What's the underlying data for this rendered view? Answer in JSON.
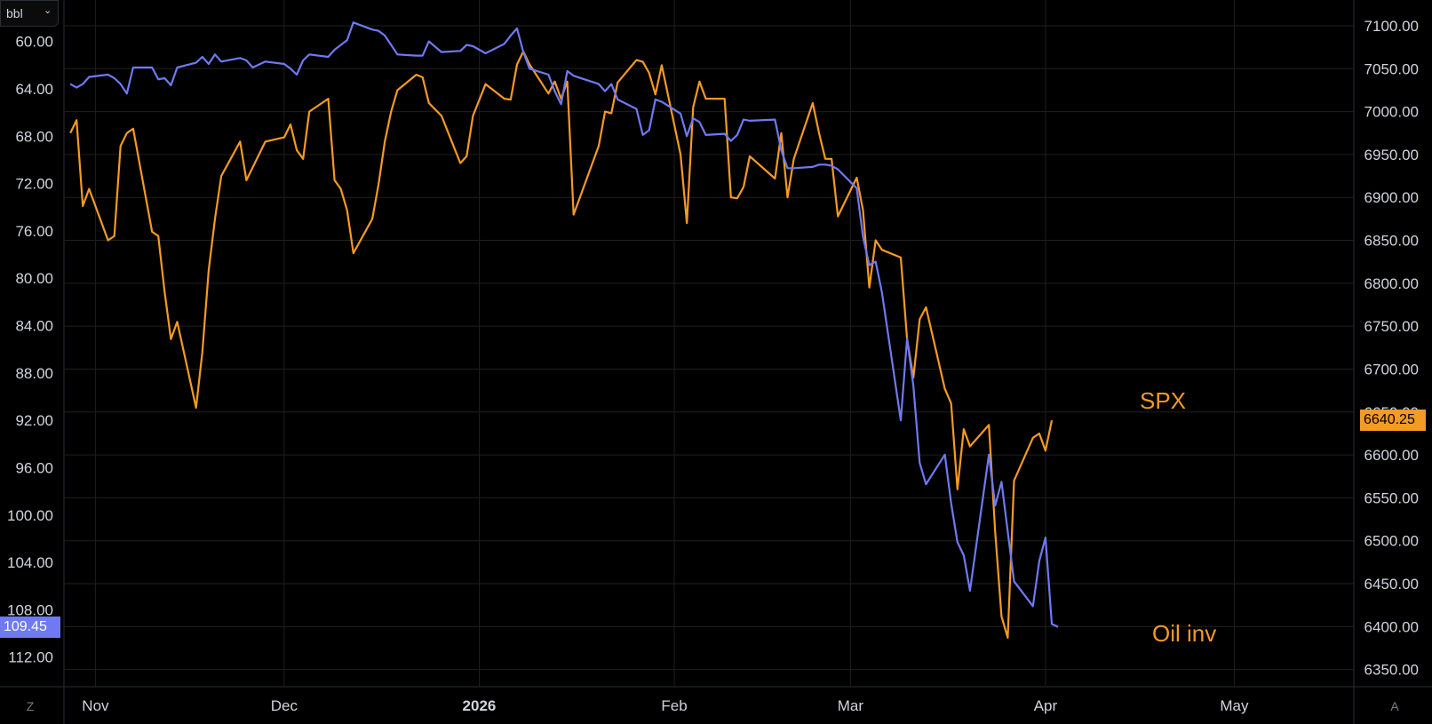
{
  "toolbar": {
    "unit_label": "bbl",
    "unit_chevron": "chevron-down-icon"
  },
  "corner": {
    "left_button": "Z",
    "right_button": "A"
  },
  "colors": {
    "background": "#000000",
    "grid": "#1f1f1f",
    "oil": "#6f79f2",
    "spx": "#f59a23",
    "text": "#d1d4dc"
  },
  "labels": {
    "spx": "SPX",
    "oil": "Oil inv"
  },
  "tags": {
    "oil_last": "109.45",
    "spx_last": "6640.25"
  },
  "chart_data": {
    "type": "line",
    "x_ticks": [
      "Nov",
      "Dec",
      "2026",
      "Feb",
      "Mar",
      "Apr",
      "May"
    ],
    "left_axis": {
      "ticks": [
        "60.00",
        "64.00",
        "68.00",
        "72.00",
        "76.00",
        "80.00",
        "84.00",
        "88.00",
        "92.00",
        "96.00",
        "100.00",
        "104.00",
        "108.00",
        "112.00"
      ],
      "range": [
        56.5,
        114.5
      ],
      "inverted": true
    },
    "right_axis": {
      "ticks": [
        "7100.00",
        "7050.00",
        "7000.00",
        "6950.00",
        "6900.00",
        "6850.00",
        "6800.00",
        "6750.00",
        "6700.00",
        "6650.00",
        "6600.00",
        "6550.00",
        "6500.00",
        "6450.00",
        "6400.00",
        "6350.00"
      ],
      "range": [
        6330,
        7130
      ]
    },
    "series": [
      {
        "name": "SPX",
        "axis": "right",
        "color": "#f59a23",
        "last": 6640.25,
        "points": [
          [
            "Oct 28",
            6975
          ],
          [
            "Oct 29",
            6990
          ],
          [
            "Oct 30",
            6890
          ],
          [
            "Oct 31",
            6910
          ],
          [
            "Nov 3",
            6850
          ],
          [
            "Nov 4",
            6855
          ],
          [
            "Nov 5",
            6960
          ],
          [
            "Nov 6",
            6975
          ],
          [
            "Nov 7",
            6980
          ],
          [
            "Nov 10",
            6860
          ],
          [
            "Nov 11",
            6855
          ],
          [
            "Nov 12",
            6790
          ],
          [
            "Nov 13",
            6735
          ],
          [
            "Nov 14",
            6755
          ],
          [
            "Nov 17",
            6655
          ],
          [
            "Nov 18",
            6720
          ],
          [
            "Nov 19",
            6815
          ],
          [
            "Nov 20",
            6875
          ],
          [
            "Nov 21",
            6925
          ],
          [
            "Nov 24",
            6965
          ],
          [
            "Nov 25",
            6920
          ],
          [
            "Nov 26",
            6935
          ],
          [
            "Nov 28",
            6965
          ],
          [
            "Dec 1",
            6970
          ],
          [
            "Dec 2",
            6985
          ],
          [
            "Dec 3",
            6955
          ],
          [
            "Dec 4",
            6945
          ],
          [
            "Dec 5",
            7000
          ],
          [
            "Dec 8",
            7015
          ],
          [
            "Dec 9",
            6920
          ],
          [
            "Dec 10",
            6910
          ],
          [
            "Dec 11",
            6885
          ],
          [
            "Dec 12",
            6835
          ],
          [
            "Dec 15",
            6875
          ],
          [
            "Dec 16",
            6915
          ],
          [
            "Dec 17",
            6965
          ],
          [
            "Dec 18",
            7000
          ],
          [
            "Dec 19",
            7025
          ],
          [
            "Dec 22",
            7043
          ],
          [
            "Dec 23",
            7040
          ],
          [
            "Dec 24",
            7010
          ],
          [
            "Dec 26",
            6995
          ],
          [
            "Dec 29",
            6940
          ],
          [
            "Dec 30",
            6948
          ],
          [
            "Dec 31",
            6995
          ],
          [
            "Jan 2",
            7032
          ],
          [
            "Jan 5",
            7015
          ],
          [
            "Jan 6",
            7014
          ],
          [
            "Jan 7",
            7055
          ],
          [
            "Jan 8",
            7070
          ],
          [
            "Jan 9",
            7055
          ],
          [
            "Jan 12",
            7021
          ],
          [
            "Jan 13",
            7035
          ],
          [
            "Jan 14",
            7015
          ],
          [
            "Jan 15",
            7035
          ],
          [
            "Jan 16",
            6880
          ],
          [
            "Jan 20",
            6960
          ],
          [
            "Jan 21",
            7000
          ],
          [
            "Jan 22",
            6998
          ],
          [
            "Jan 23",
            7034
          ],
          [
            "Jan 26",
            7060
          ],
          [
            "Jan 27",
            7058
          ],
          [
            "Jan 28",
            7045
          ],
          [
            "Jan 29",
            7020
          ],
          [
            "Jan 30",
            7054
          ],
          [
            "Feb 2",
            6950
          ],
          [
            "Feb 3",
            6870
          ],
          [
            "Feb 4",
            7005
          ],
          [
            "Feb 5",
            7035
          ],
          [
            "Feb 6",
            7015
          ],
          [
            "Feb 9",
            7015
          ],
          [
            "Feb 10",
            6900
          ],
          [
            "Feb 11",
            6899
          ],
          [
            "Feb 12",
            6912
          ],
          [
            "Feb 13",
            6948
          ],
          [
            "Feb 17",
            6922
          ],
          [
            "Feb 18",
            6975
          ],
          [
            "Feb 19",
            6900
          ],
          [
            "Feb 20",
            6945
          ],
          [
            "Feb 23",
            7010
          ],
          [
            "Feb 24",
            6975
          ],
          [
            "Feb 25",
            6945
          ],
          [
            "Feb 26",
            6945
          ],
          [
            "Feb 27",
            6878
          ],
          [
            "Mar 2",
            6923
          ],
          [
            "Mar 3",
            6885
          ],
          [
            "Mar 4",
            6795
          ],
          [
            "Mar 5",
            6850
          ],
          [
            "Mar 6",
            6839
          ],
          [
            "Mar 9",
            6830
          ],
          [
            "Mar 10",
            6735
          ],
          [
            "Mar 11",
            6690
          ],
          [
            "Mar 12",
            6758
          ],
          [
            "Mar 13",
            6772
          ],
          [
            "Mar 16",
            6677
          ],
          [
            "Mar 17",
            6660
          ],
          [
            "Mar 18",
            6560
          ],
          [
            "Mar 19",
            6630
          ],
          [
            "Mar 20",
            6610
          ],
          [
            "Mar 23",
            6635
          ],
          [
            "Mar 24",
            6510
          ],
          [
            "Mar 25",
            6412
          ],
          [
            "Mar 26",
            6387
          ],
          [
            "Mar 27",
            6570
          ],
          [
            "Mar 30",
            6620
          ],
          [
            "Mar 31",
            6625
          ],
          [
            "Apr 1",
            6605
          ],
          [
            "Apr 2",
            6640.25
          ]
        ]
      },
      {
        "name": "Oil inv",
        "axis": "left",
        "color": "#6f79f2",
        "last": 109.45,
        "points": [
          [
            "Oct 28",
            63.6
          ],
          [
            "Oct 29",
            63.9
          ],
          [
            "Oct 30",
            63.6
          ],
          [
            "Oct 31",
            63.0
          ],
          [
            "Nov 3",
            62.8
          ],
          [
            "Nov 4",
            63.1
          ],
          [
            "Nov 5",
            63.6
          ],
          [
            "Nov 6",
            64.4
          ],
          [
            "Nov 7",
            62.2
          ],
          [
            "Nov 10",
            62.2
          ],
          [
            "Nov 11",
            63.2
          ],
          [
            "Nov 12",
            63.1
          ],
          [
            "Nov 13",
            63.7
          ],
          [
            "Nov 14",
            62.2
          ],
          [
            "Nov 17",
            61.8
          ],
          [
            "Nov 18",
            61.3
          ],
          [
            "Nov 19",
            61.9
          ],
          [
            "Nov 20",
            61.1
          ],
          [
            "Nov 21",
            61.7
          ],
          [
            "Nov 24",
            61.4
          ],
          [
            "Nov 25",
            61.6
          ],
          [
            "Nov 26",
            62.2
          ],
          [
            "Nov 28",
            61.7
          ],
          [
            "Dec 1",
            61.9
          ],
          [
            "Dec 2",
            62.3
          ],
          [
            "Dec 3",
            62.8
          ],
          [
            "Dec 4",
            61.6
          ],
          [
            "Dec 5",
            61.1
          ],
          [
            "Dec 8",
            61.3
          ],
          [
            "Dec 9",
            60.7
          ],
          [
            "Dec 10",
            60.3
          ],
          [
            "Dec 11",
            59.9
          ],
          [
            "Dec 12",
            58.4
          ],
          [
            "Dec 15",
            59.0
          ],
          [
            "Dec 16",
            59.1
          ],
          [
            "Dec 17",
            59.5
          ],
          [
            "Dec 18",
            60.3
          ],
          [
            "Dec 19",
            61.1
          ],
          [
            "Dec 22",
            61.2
          ],
          [
            "Dec 23",
            61.2
          ],
          [
            "Dec 24",
            60.0
          ],
          [
            "Dec 26",
            60.9
          ],
          [
            "Dec 29",
            60.8
          ],
          [
            "Dec 30",
            60.3
          ],
          [
            "Dec 31",
            60.4
          ],
          [
            "Jan 2",
            61.0
          ],
          [
            "Jan 5",
            60.2
          ],
          [
            "Jan 6",
            59.5
          ],
          [
            "Jan 7",
            58.9
          ],
          [
            "Jan 8",
            60.9
          ],
          [
            "Jan 9",
            62.3
          ],
          [
            "Jan 12",
            62.8
          ],
          [
            "Jan 13",
            64.2
          ],
          [
            "Jan 14",
            65.3
          ],
          [
            "Jan 15",
            62.5
          ],
          [
            "Jan 16",
            62.9
          ],
          [
            "Jan 20",
            63.6
          ],
          [
            "Jan 21",
            64.2
          ],
          [
            "Jan 22",
            63.6
          ],
          [
            "Jan 23",
            64.9
          ],
          [
            "Jan 26",
            65.7
          ],
          [
            "Jan 27",
            67.9
          ],
          [
            "Jan 28",
            67.5
          ],
          [
            "Jan 29",
            64.9
          ],
          [
            "Jan 30",
            65.1
          ],
          [
            "Feb 2",
            66.1
          ],
          [
            "Feb 3",
            68.0
          ],
          [
            "Feb 4",
            66.5
          ],
          [
            "Feb 5",
            66.8
          ],
          [
            "Feb 6",
            67.9
          ],
          [
            "Feb 9",
            67.8
          ],
          [
            "Feb 10",
            68.4
          ],
          [
            "Feb 11",
            67.9
          ],
          [
            "Feb 12",
            66.6
          ],
          [
            "Feb 13",
            66.7
          ],
          [
            "Feb 17",
            66.6
          ],
          [
            "Feb 18",
            69.2
          ],
          [
            "Feb 19",
            70.7
          ],
          [
            "Feb 20",
            70.7
          ],
          [
            "Feb 23",
            70.6
          ],
          [
            "Feb 24",
            70.4
          ],
          [
            "Feb 25",
            70.4
          ],
          [
            "Feb 26",
            70.5
          ],
          [
            "Feb 27",
            70.8
          ],
          [
            "Mar 2",
            72.4
          ],
          [
            "Mar 3",
            76.5
          ],
          [
            "Mar 4",
            78.9
          ],
          [
            "Mar 5",
            78.6
          ],
          [
            "Mar 6",
            81.2
          ],
          [
            "Mar 9",
            92.0
          ],
          [
            "Mar 10",
            85.1
          ],
          [
            "Mar 11",
            89.1
          ],
          [
            "Mar 12",
            95.6
          ],
          [
            "Mar 13",
            97.4
          ],
          [
            "Mar 16",
            94.9
          ],
          [
            "Mar 17",
            99.0
          ],
          [
            "Mar 18",
            102.3
          ],
          [
            "Mar 19",
            103.4
          ],
          [
            "Mar 20",
            106.4
          ],
          [
            "Mar 23",
            94.9
          ],
          [
            "Mar 24",
            99.2
          ],
          [
            "Mar 25",
            97.2
          ],
          [
            "Mar 26",
            101.4
          ],
          [
            "Mar 27",
            105.6
          ],
          [
            "Mar 30",
            107.7
          ],
          [
            "Mar 31",
            103.9
          ],
          [
            "Apr 1",
            101.9
          ],
          [
            "Apr 2",
            109.2
          ],
          [
            "Apr 3",
            109.45
          ]
        ]
      }
    ]
  }
}
